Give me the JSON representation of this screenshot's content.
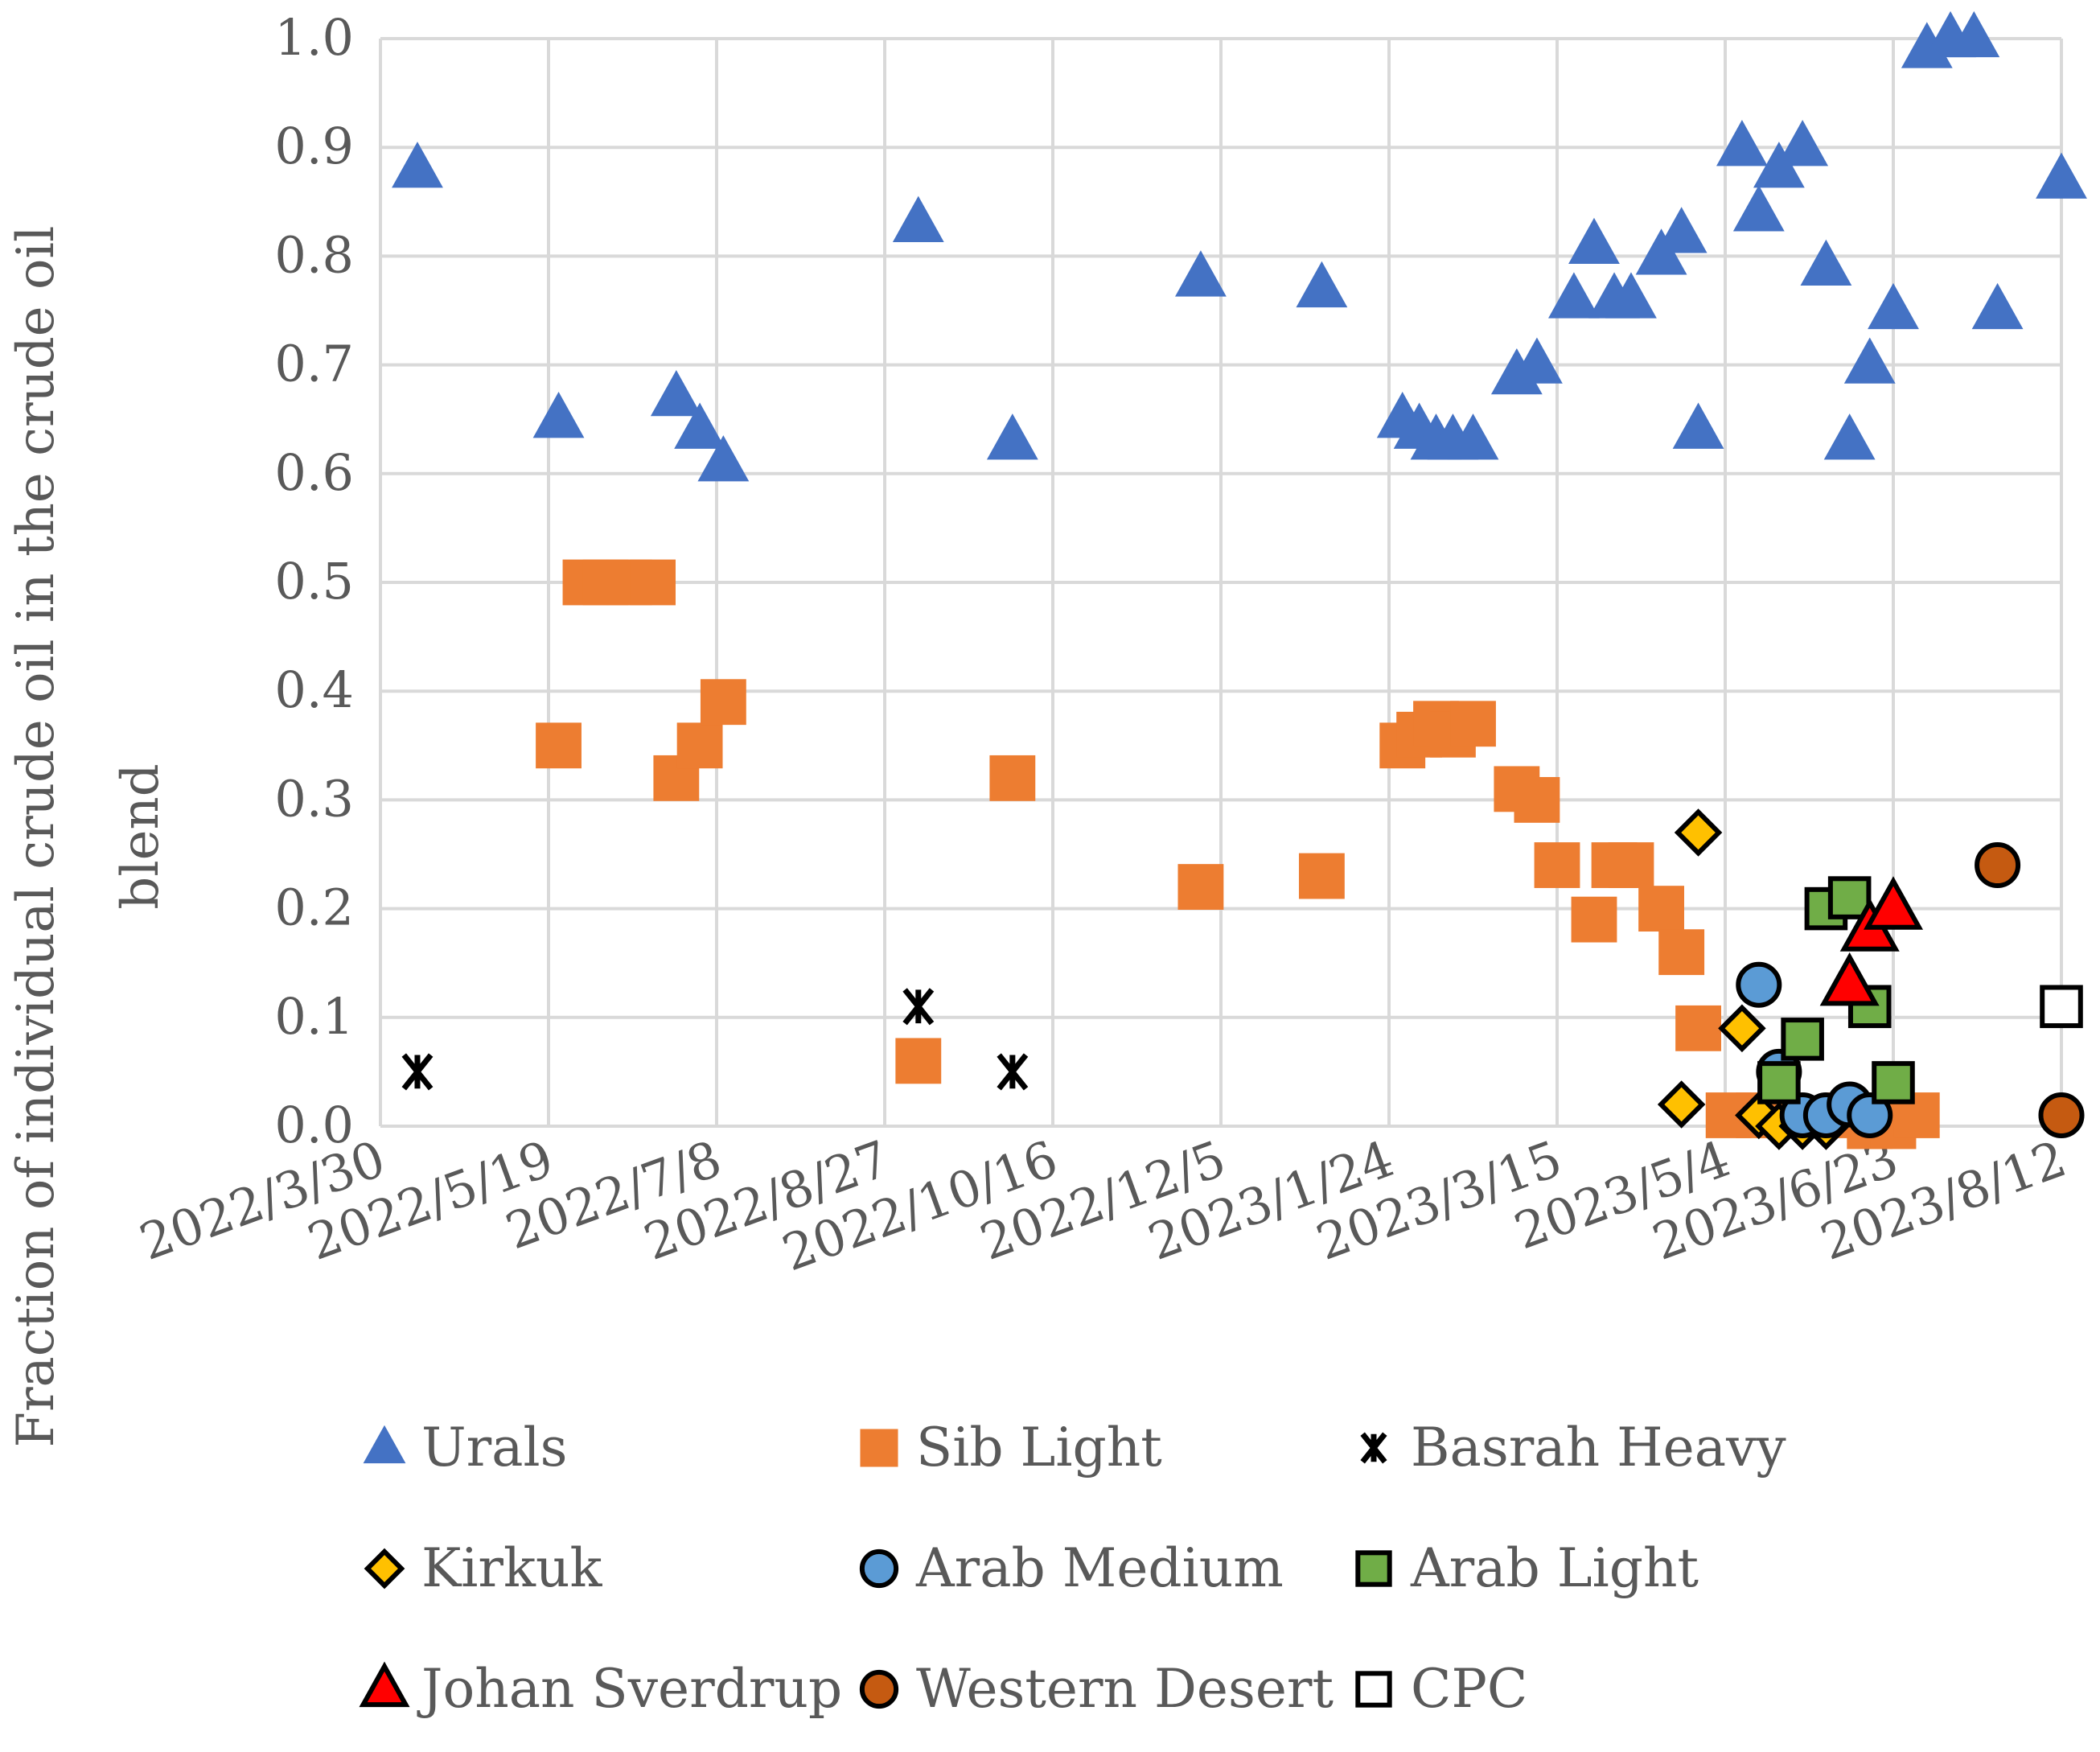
{
  "chart_data": {
    "type": "scatter",
    "title": "",
    "xlabel": "",
    "ylabel": "Fraction of individual crude oil in the crude oil blend",
    "ylabel_lines": [
      "Fraction of individual crude oil in the crude oil",
      "blend"
    ],
    "ylim": [
      0.0,
      1.0
    ],
    "xlim": [
      "2022/3/30",
      "2023/8/12"
    ],
    "y_ticks": [
      "0.0",
      "0.1",
      "0.2",
      "0.3",
      "0.4",
      "0.5",
      "0.6",
      "0.7",
      "0.8",
      "0.9",
      "1.0"
    ],
    "x_ticks": [
      "2022/3/30",
      "2022/5/19",
      "2022/7/8",
      "2022/8/27",
      "2022/10/16",
      "2022/12/5",
      "2023/1/24",
      "2023/3/15",
      "2023/5/4",
      "2023/6/23",
      "2023/8/12"
    ],
    "grid": true,
    "legend_position": "bottom",
    "colors": {
      "urals": "#4472C4",
      "sib_light": "#ED7D31",
      "basrah": "#000000",
      "kirkuk": "#FFC000",
      "arab_medium": "#5B9BD5",
      "arab_light": "#70AD47",
      "johan": "#FF0000",
      "western": "#C55A11",
      "cpc": "#FFFFFF",
      "grid": "#D9D9D9",
      "text": "#595959"
    },
    "series": [
      {
        "name": "Urals",
        "marker": "triangle",
        "color": "#4472C4",
        "points": [
          [
            "2022/4/10",
            0.88
          ],
          [
            "2022/5/22",
            0.65
          ],
          [
            "2022/6/26",
            0.67
          ],
          [
            "2022/7/3",
            0.64
          ],
          [
            "2022/7/10",
            0.61
          ],
          [
            "2022/9/6",
            0.83
          ],
          [
            "2022/10/4",
            0.63
          ],
          [
            "2022/11/29",
            0.78
          ],
          [
            "2023/1/4",
            0.77
          ],
          [
            "2023/1/28",
            0.65
          ],
          [
            "2023/2/2",
            0.64
          ],
          [
            "2023/2/7",
            0.63
          ],
          [
            "2023/2/12",
            0.63
          ],
          [
            "2023/2/18",
            0.63
          ],
          [
            "2023/3/3",
            0.69
          ],
          [
            "2023/3/9",
            0.7
          ],
          [
            "2023/3/20",
            0.76
          ],
          [
            "2023/3/26",
            0.81
          ],
          [
            "2023/4/1",
            0.76
          ],
          [
            "2023/4/6",
            0.76
          ],
          [
            "2023/4/15",
            0.8
          ],
          [
            "2023/4/21",
            0.82
          ],
          [
            "2023/4/26",
            0.64
          ],
          [
            "2023/5/9",
            0.9
          ],
          [
            "2023/5/14",
            0.84
          ],
          [
            "2023/5/20",
            0.88
          ],
          [
            "2023/5/27",
            0.9
          ],
          [
            "2023/6/3",
            0.79
          ],
          [
            "2023/6/10",
            0.63
          ],
          [
            "2023/6/16",
            0.7
          ],
          [
            "2023/6/23",
            0.75
          ],
          [
            "2023/7/3",
            0.99
          ],
          [
            "2023/7/10",
            1.0
          ],
          [
            "2023/7/17",
            1.0
          ],
          [
            "2023/7/24",
            0.75
          ],
          [
            "2023/8/12",
            0.87
          ]
        ]
      },
      {
        "name": "Sib Light",
        "marker": "square",
        "color": "#ED7D31",
        "points": [
          [
            "2022/5/22",
            0.35
          ],
          [
            "2022/5/30",
            0.5
          ],
          [
            "2022/6/5",
            0.5
          ],
          [
            "2022/6/12",
            0.5
          ],
          [
            "2022/6/19",
            0.5
          ],
          [
            "2022/6/26",
            0.32
          ],
          [
            "2022/7/3",
            0.35
          ],
          [
            "2022/7/10",
            0.39
          ],
          [
            "2022/9/6",
            0.06
          ],
          [
            "2022/10/4",
            0.32
          ],
          [
            "2022/11/29",
            0.22
          ],
          [
            "2023/1/4",
            0.23
          ],
          [
            "2023/1/28",
            0.35
          ],
          [
            "2023/2/2",
            0.36
          ],
          [
            "2023/2/7",
            0.37
          ],
          [
            "2023/2/12",
            0.36
          ],
          [
            "2023/2/18",
            0.37
          ],
          [
            "2023/3/3",
            0.31
          ],
          [
            "2023/3/9",
            0.3
          ],
          [
            "2023/3/15",
            0.24
          ],
          [
            "2023/3/26",
            0.19
          ],
          [
            "2023/4/1",
            0.24
          ],
          [
            "2023/4/6",
            0.24
          ],
          [
            "2023/4/15",
            0.2
          ],
          [
            "2023/4/21",
            0.16
          ],
          [
            "2023/4/26",
            0.09
          ],
          [
            "2023/5/5",
            0.01
          ],
          [
            "2023/5/14",
            0.01
          ],
          [
            "2023/5/20",
            0.01
          ],
          [
            "2023/6/10",
            0.01
          ],
          [
            "2023/6/16",
            0.0
          ],
          [
            "2023/6/23",
            0.0
          ],
          [
            "2023/6/30",
            0.01
          ]
        ]
      },
      {
        "name": "Basrah Heavy",
        "marker": "asterisk",
        "color": "#000000",
        "points": [
          [
            "2022/4/10",
            0.05
          ],
          [
            "2022/9/6",
            0.11
          ],
          [
            "2022/10/4",
            0.05
          ]
        ]
      },
      {
        "name": "Kirkuk",
        "marker": "diamond",
        "color": "#FFC000",
        "points": [
          [
            "2023/4/21",
            0.02
          ],
          [
            "2023/4/26",
            0.27
          ],
          [
            "2023/5/9",
            0.09
          ],
          [
            "2023/5/14",
            0.01
          ],
          [
            "2023/5/20",
            0.0
          ],
          [
            "2023/5/27",
            0.0
          ],
          [
            "2023/6/3",
            0.0
          ]
        ]
      },
      {
        "name": "Arab Medium",
        "marker": "circle",
        "color": "#5B9BD5",
        "points": [
          [
            "2023/5/14",
            0.13
          ],
          [
            "2023/5/20",
            0.05
          ],
          [
            "2023/5/27",
            0.01
          ],
          [
            "2023/6/3",
            0.01
          ],
          [
            "2023/6/10",
            0.02
          ],
          [
            "2023/6/16",
            0.01
          ]
        ]
      },
      {
        "name": "Arab Light",
        "marker": "square",
        "color": "#70AD47",
        "points": [
          [
            "2023/5/20",
            0.04
          ],
          [
            "2023/5/27",
            0.08
          ],
          [
            "2023/6/3",
            0.2
          ],
          [
            "2023/6/10",
            0.21
          ],
          [
            "2023/6/16",
            0.11
          ],
          [
            "2023/6/23",
            0.04
          ]
        ]
      },
      {
        "name": "Johan Sverdrup",
        "marker": "triangle",
        "color": "#FF0000",
        "points": [
          [
            "2023/6/10",
            0.13
          ],
          [
            "2023/6/16",
            0.18
          ],
          [
            "2023/6/23",
            0.2
          ]
        ]
      },
      {
        "name": "Western Desert",
        "marker": "circle",
        "color": "#C55A11",
        "points": [
          [
            "2023/7/24",
            0.24
          ],
          [
            "2023/8/12",
            0.01
          ]
        ]
      },
      {
        "name": "CPC",
        "marker": "square",
        "color": "#FFFFFF",
        "points": [
          [
            "2023/8/12",
            0.11
          ]
        ]
      }
    ]
  }
}
